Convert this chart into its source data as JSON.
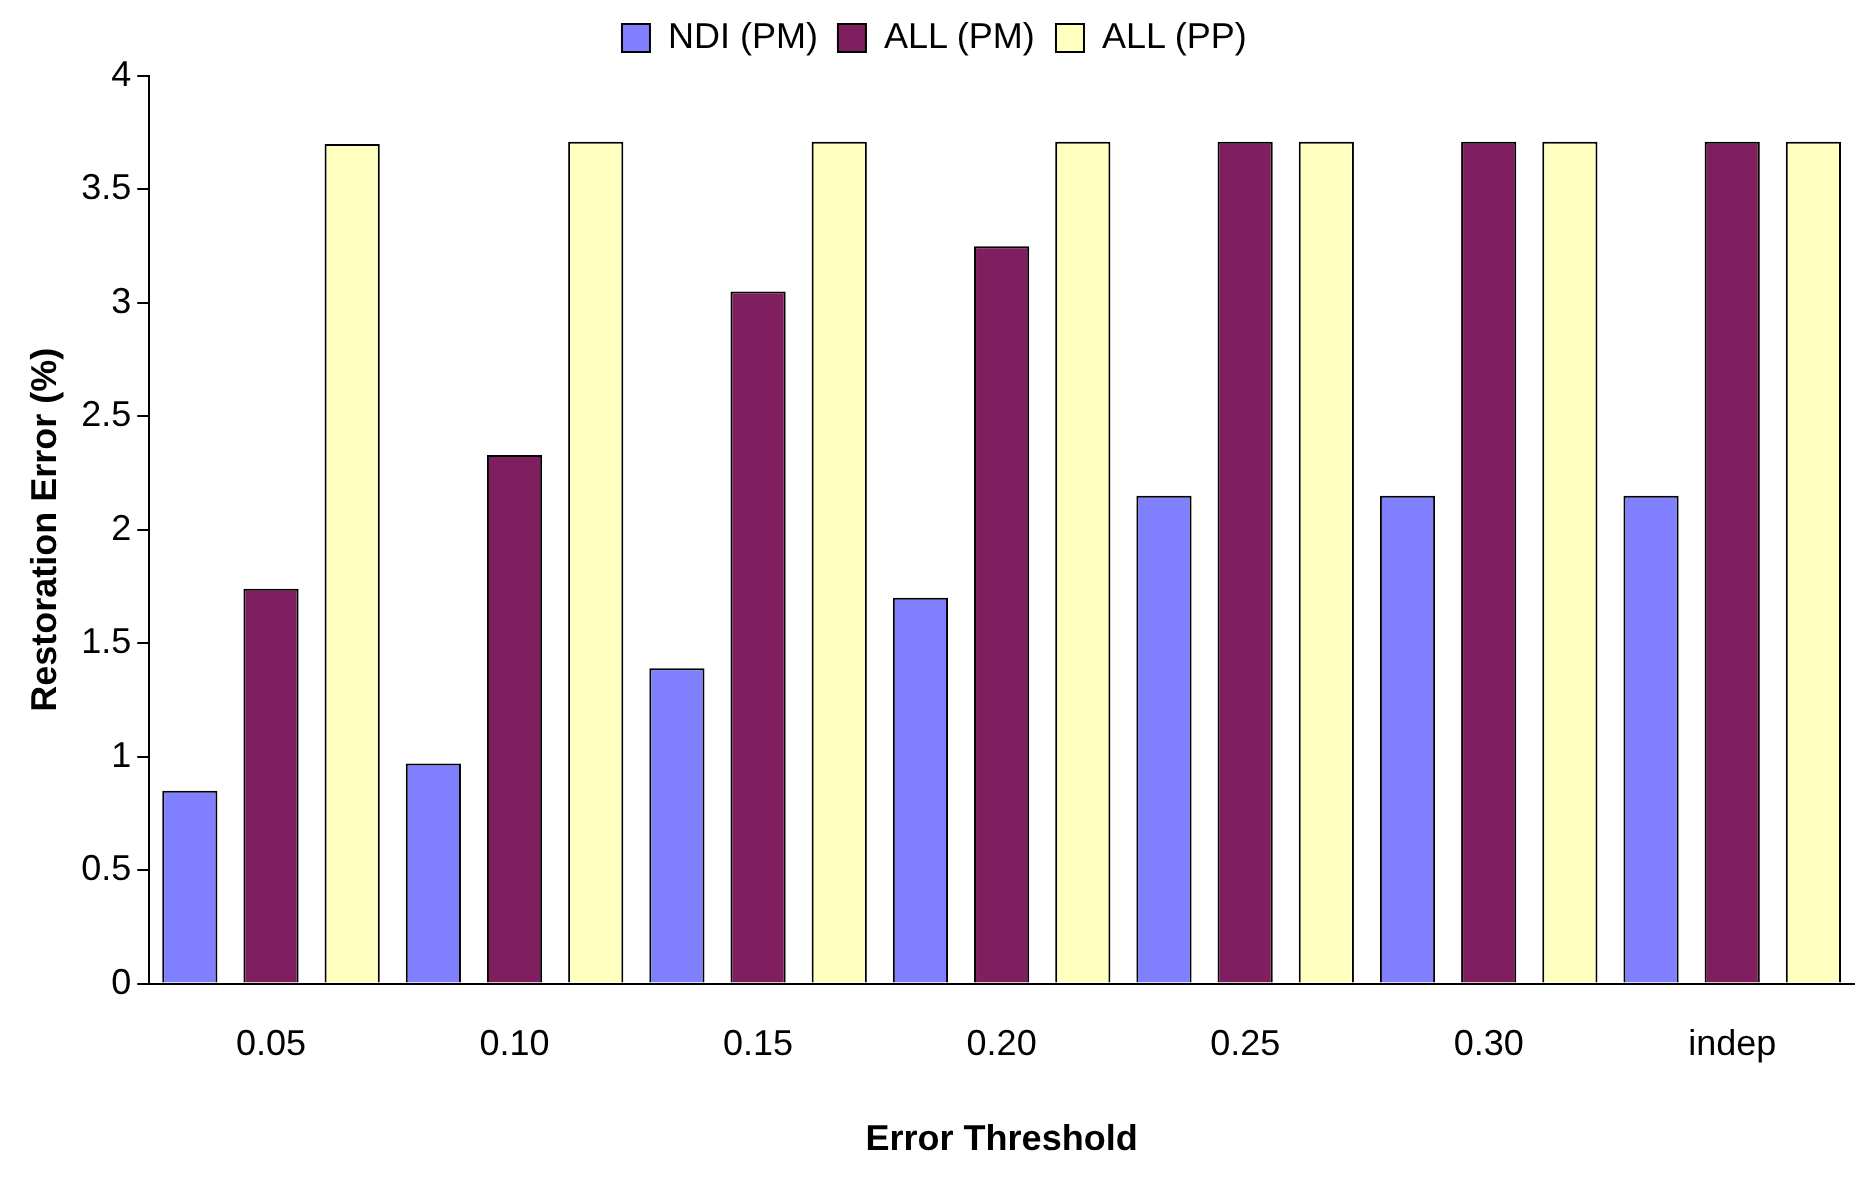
{
  "chart_data": {
    "type": "bar",
    "xlabel": "Error Threshold",
    "ylabel": "Restoration Error (%)",
    "categories": [
      "0.05",
      "0.10",
      "0.15",
      "0.20",
      "0.25",
      "0.30",
      "indep"
    ],
    "series": [
      {
        "name": "NDI (PM)",
        "color": "#8080ff",
        "values": [
          0.85,
          0.97,
          1.39,
          1.7,
          2.15,
          2.15,
          2.15
        ]
      },
      {
        "name": "ALL (PM)",
        "color": "#801f5f",
        "values": [
          1.74,
          2.33,
          3.05,
          3.25,
          3.71,
          3.71,
          3.71
        ]
      },
      {
        "name": "ALL (PP)",
        "color": "#ffffc0",
        "values": [
          3.7,
          3.71,
          3.71,
          3.71,
          3.71,
          3.71,
          3.71
        ]
      }
    ],
    "ylim": [
      0,
      4
    ],
    "yticks": [
      0,
      0.5,
      1,
      1.5,
      2,
      2.5,
      3,
      3.5,
      4
    ],
    "grid": false,
    "legend": "top"
  }
}
